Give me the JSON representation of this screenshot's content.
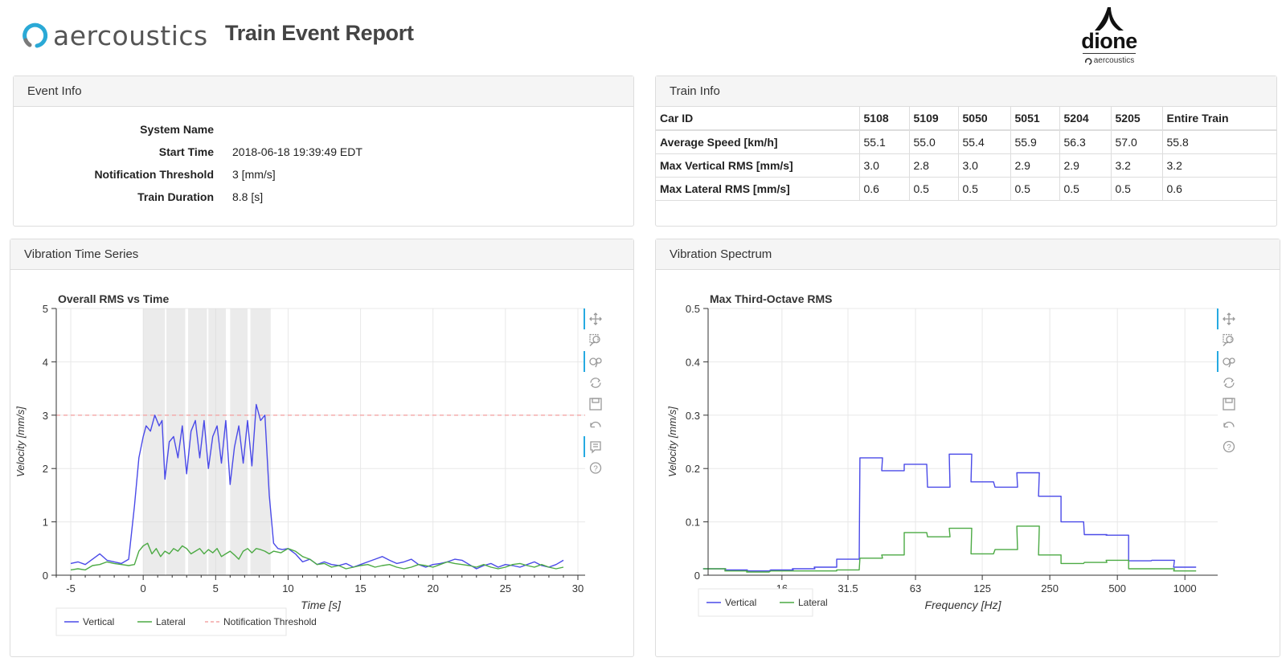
{
  "header": {
    "brand": "aercoustics",
    "title": "Train Event Report",
    "partner_brand": "dione",
    "partner_sub": "aercoustics"
  },
  "event_info": {
    "title": "Event Info",
    "rows": [
      {
        "label": "System Name",
        "value": ""
      },
      {
        "label": "Start Time",
        "value": "2018-06-18 19:39:49 EDT"
      },
      {
        "label": "Notification Threshold",
        "value": "3 [mm/s]"
      },
      {
        "label": "Train Duration",
        "value": "8.8 [s]"
      }
    ]
  },
  "train_info": {
    "title": "Train Info",
    "columns": [
      "Car ID",
      "5108",
      "5109",
      "5050",
      "5051",
      "5204",
      "5205",
      "Entire Train"
    ],
    "rows": [
      [
        "Average Speed [km/h]",
        "55.1",
        "55.0",
        "55.4",
        "55.9",
        "56.3",
        "57.0",
        "55.8"
      ],
      [
        "Max Vertical RMS [mm/s]",
        "3.0",
        "2.8",
        "3.0",
        "2.9",
        "2.9",
        "3.2",
        "3.2"
      ],
      [
        "Max Lateral RMS [mm/s]",
        "0.6",
        "0.5",
        "0.5",
        "0.5",
        "0.5",
        "0.5",
        "0.6"
      ]
    ]
  },
  "timeseries_panel": {
    "title": "Vibration Time Series"
  },
  "spectrum_panel": {
    "title": "Vibration Spectrum"
  },
  "toolbar_icons": [
    "pan-icon",
    "box-zoom-icon",
    "wheel-zoom-icon",
    "reset-icon",
    "save-icon",
    "undo-icon",
    "hover-icon",
    "help-icon"
  ],
  "chart_data": [
    {
      "type": "line",
      "title": "Overall RMS vs Time",
      "xlabel": "Time [s]",
      "ylabel": "Velocity [mm/s]",
      "xlim": [
        -6,
        30.5
      ],
      "ylim": [
        0,
        5
      ],
      "xticks": [
        -5,
        0,
        5,
        10,
        15,
        20,
        25,
        30
      ],
      "yticks": [
        0,
        1,
        2,
        3,
        4,
        5
      ],
      "grid": true,
      "legend_position": "bottom",
      "threshold": {
        "name": "Notification Threshold",
        "value": 3,
        "color": "#f4a6a6"
      },
      "car_bands": [
        [
          0,
          1.5
        ],
        [
          1.6,
          2.9
        ],
        [
          3.1,
          4.4
        ],
        [
          4.5,
          5.7
        ],
        [
          6.0,
          7.2
        ],
        [
          7.4,
          8.8
        ]
      ],
      "series": [
        {
          "name": "Vertical",
          "color": "#4a4ae8",
          "x": [
            -5,
            -4.5,
            -4,
            -3.5,
            -3,
            -2.5,
            -2,
            -1.5,
            -1,
            -0.6,
            -0.3,
            0,
            0.2,
            0.5,
            0.8,
            1.1,
            1.3,
            1.5,
            1.8,
            2.1,
            2.4,
            2.7,
            3.0,
            3.3,
            3.6,
            3.9,
            4.2,
            4.5,
            4.8,
            5.1,
            5.4,
            5.7,
            6.0,
            6.3,
            6.6,
            6.9,
            7.2,
            7.5,
            7.8,
            8.1,
            8.4,
            8.7,
            9.0,
            9.3,
            9.6,
            10,
            10.5,
            11,
            11.5,
            12,
            12.5,
            13,
            13.5,
            14,
            14.5,
            15,
            15.5,
            16,
            16.5,
            17,
            17.5,
            18,
            18.5,
            19,
            19.5,
            20,
            20.5,
            21,
            21.5,
            22,
            22.5,
            23,
            23.5,
            24,
            24.5,
            25,
            25.5,
            26,
            26.5,
            27,
            27.5,
            28,
            28.5,
            29
          ],
          "y": [
            0.22,
            0.25,
            0.2,
            0.3,
            0.4,
            0.28,
            0.25,
            0.22,
            0.3,
            1.3,
            2.2,
            2.6,
            2.8,
            2.7,
            3.0,
            2.8,
            2.9,
            1.8,
            2.5,
            2.6,
            2.2,
            2.8,
            1.9,
            2.7,
            2.9,
            2.2,
            2.9,
            2.0,
            2.6,
            2.8,
            2.1,
            2.9,
            1.7,
            2.4,
            2.8,
            2.1,
            2.9,
            2.05,
            3.2,
            2.9,
            3.0,
            1.5,
            0.6,
            0.5,
            0.48,
            0.5,
            0.4,
            0.25,
            0.3,
            0.2,
            0.25,
            0.2,
            0.18,
            0.22,
            0.15,
            0.2,
            0.25,
            0.3,
            0.35,
            0.28,
            0.22,
            0.25,
            0.3,
            0.2,
            0.15,
            0.2,
            0.22,
            0.25,
            0.3,
            0.28,
            0.2,
            0.12,
            0.18,
            0.22,
            0.15,
            0.2,
            0.18,
            0.15,
            0.2,
            0.25,
            0.18,
            0.15,
            0.2,
            0.28
          ]
        },
        {
          "name": "Lateral",
          "color": "#4caa44",
          "x": [
            -5,
            -4.5,
            -4,
            -3.5,
            -3,
            -2.5,
            -2,
            -1.5,
            -1,
            -0.6,
            -0.3,
            0,
            0.3,
            0.6,
            0.9,
            1.2,
            1.5,
            1.8,
            2.1,
            2.4,
            2.7,
            3.0,
            3.3,
            3.6,
            3.9,
            4.2,
            4.5,
            4.8,
            5.1,
            5.4,
            5.7,
            6.0,
            6.3,
            6.6,
            6.9,
            7.2,
            7.5,
            7.8,
            8.1,
            8.4,
            8.7,
            9.0,
            9.5,
            10,
            10.5,
            11,
            11.5,
            12,
            12.5,
            13,
            13.5,
            14,
            14.5,
            15,
            15.5,
            16,
            16.5,
            17,
            17.5,
            18,
            18.5,
            19,
            19.5,
            20,
            20.5,
            21,
            21.5,
            22,
            22.5,
            23,
            23.5,
            24,
            24.5,
            25,
            25.5,
            26,
            26.5,
            27,
            27.5,
            28,
            28.5,
            29
          ],
          "y": [
            0.1,
            0.12,
            0.1,
            0.18,
            0.2,
            0.25,
            0.22,
            0.2,
            0.18,
            0.2,
            0.45,
            0.55,
            0.6,
            0.4,
            0.5,
            0.35,
            0.45,
            0.4,
            0.5,
            0.45,
            0.55,
            0.5,
            0.4,
            0.45,
            0.5,
            0.4,
            0.48,
            0.42,
            0.5,
            0.35,
            0.4,
            0.45,
            0.38,
            0.3,
            0.45,
            0.5,
            0.42,
            0.5,
            0.48,
            0.45,
            0.4,
            0.45,
            0.42,
            0.5,
            0.45,
            0.35,
            0.3,
            0.2,
            0.22,
            0.15,
            0.18,
            0.12,
            0.15,
            0.18,
            0.2,
            0.15,
            0.18,
            0.2,
            0.15,
            0.12,
            0.15,
            0.2,
            0.18,
            0.15,
            0.2,
            0.25,
            0.22,
            0.2,
            0.18,
            0.15,
            0.2,
            0.15,
            0.12,
            0.15,
            0.2,
            0.22,
            0.18,
            0.15,
            0.2,
            0.15,
            0.12,
            0.15
          ]
        }
      ]
    },
    {
      "type": "line",
      "title": "Max Third-Octave RMS",
      "xlabel": "Frequency [Hz]",
      "ylabel": "Velocity [mm/s]",
      "xscale": "log",
      "xlim": [
        7.5,
        1400
      ],
      "ylim": [
        0,
        0.5
      ],
      "xticks": [
        16,
        31.5,
        63,
        125,
        250,
        500,
        1000
      ],
      "yticks": [
        0,
        0.1,
        0.2,
        0.3,
        0.4,
        0.5
      ],
      "grid": true,
      "legend_position": "bottom-left",
      "series": [
        {
          "name": "Vertical",
          "color": "#4a4ae8",
          "x": [
            8,
            10,
            12.5,
            16,
            20,
            25,
            31.5,
            40,
            50,
            63,
            80,
            100,
            125,
            160,
            200,
            250,
            315,
            400,
            500,
            630,
            800,
            1000
          ],
          "y": [
            0.012,
            0.01,
            0.008,
            0.01,
            0.012,
            0.015,
            0.03,
            0.22,
            0.196,
            0.208,
            0.165,
            0.227,
            0.175,
            0.165,
            0.192,
            0.148,
            0.1,
            0.076,
            0.075,
            0.027,
            0.028,
            0.015
          ]
        },
        {
          "name": "Lateral",
          "color": "#4caa44",
          "x": [
            8,
            10,
            12.5,
            16,
            20,
            25,
            31.5,
            40,
            50,
            63,
            80,
            100,
            125,
            160,
            200,
            250,
            315,
            400,
            500,
            630,
            800,
            1000
          ],
          "y": [
            0.012,
            0.008,
            0.006,
            0.008,
            0.008,
            0.008,
            0.01,
            0.032,
            0.038,
            0.08,
            0.072,
            0.088,
            0.04,
            0.048,
            0.092,
            0.038,
            0.022,
            0.024,
            0.028,
            0.012,
            0.012,
            0.008
          ]
        }
      ]
    }
  ]
}
